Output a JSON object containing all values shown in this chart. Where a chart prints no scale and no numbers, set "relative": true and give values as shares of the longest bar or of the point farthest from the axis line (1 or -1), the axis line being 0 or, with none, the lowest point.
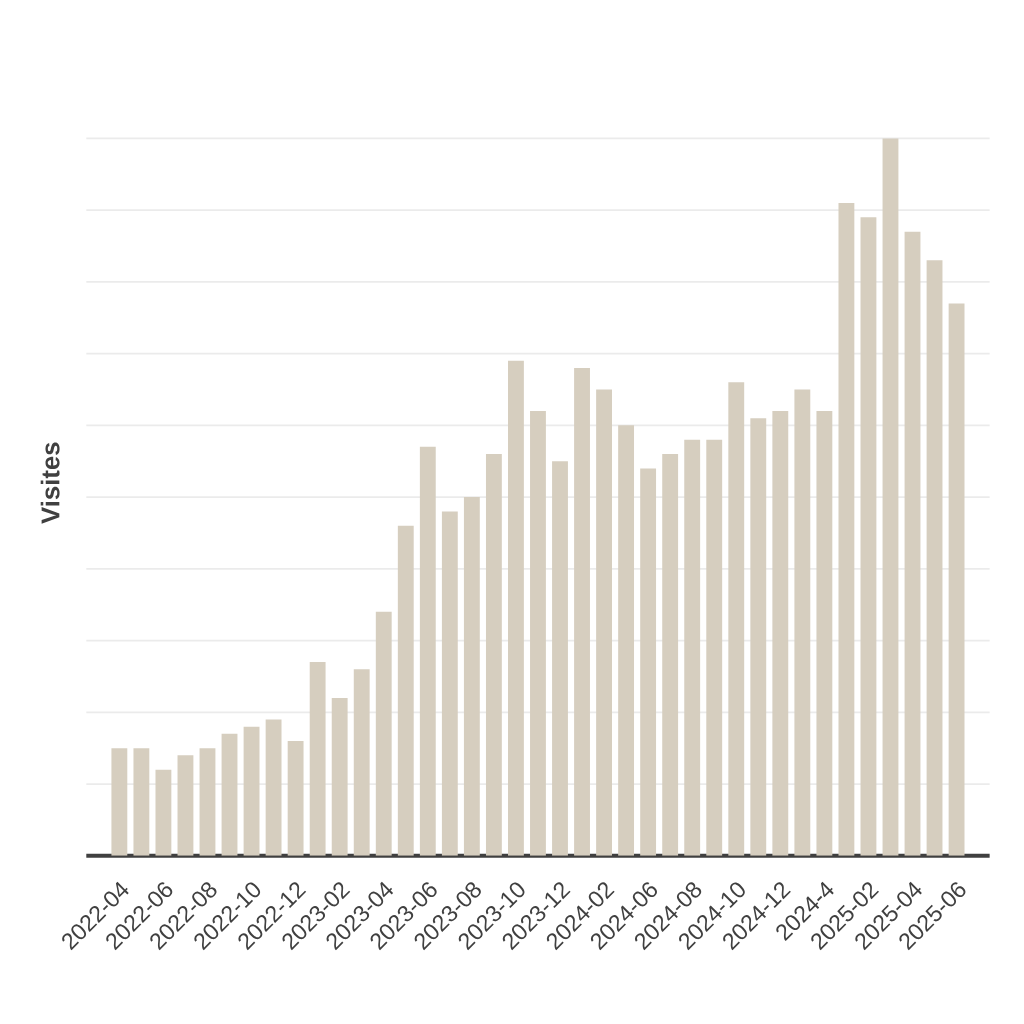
{
  "chart_data": {
    "type": "bar",
    "ylabel": "Visites",
    "relative": true,
    "grid": "y",
    "color": "#d6cebf",
    "categories": [
      "2022-04",
      null,
      "2022-06",
      null,
      "2022-08",
      null,
      "2022-10",
      null,
      "2022-12",
      null,
      "2023-02",
      null,
      "2023-04",
      null,
      "2023-06",
      null,
      "2023-08",
      null,
      "2023-10",
      null,
      "2023-12",
      null,
      "2024-02",
      null,
      "2024-06",
      null,
      "2024-08",
      null,
      "2024-10",
      null,
      "2024-12",
      null,
      "2024-4",
      null,
      "2025-02",
      null,
      "2025-04",
      null,
      "2025-06"
    ],
    "values": [
      0.15,
      0.15,
      0.12,
      0.14,
      0.15,
      0.17,
      0.18,
      0.19,
      0.16,
      0.27,
      0.22,
      0.26,
      0.34,
      0.46,
      0.57,
      0.48,
      0.5,
      0.56,
      0.69,
      0.62,
      0.55,
      0.68,
      0.65,
      0.6,
      0.54,
      0.56,
      0.58,
      0.58,
      0.66,
      0.61,
      0.62,
      0.65,
      0.62,
      0.91,
      0.89,
      1,
      0.87,
      0.83,
      0.77
    ]
  }
}
